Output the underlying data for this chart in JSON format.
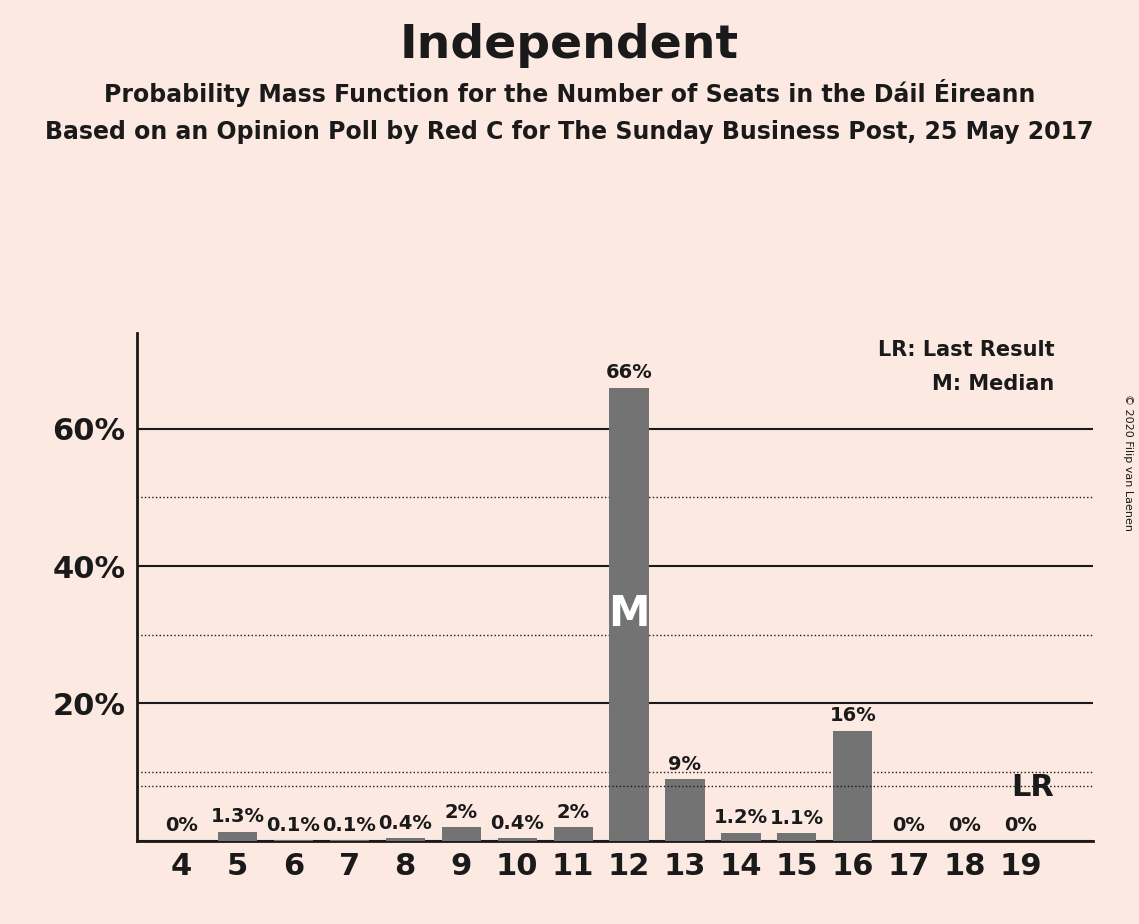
{
  "title": "Independent",
  "subtitle1": "Probability Mass Function for the Number of Seats in the Dáil Éireann",
  "subtitle2": "Based on an Opinion Poll by Red C for The Sunday Business Post, 25 May 2017",
  "copyright": "© 2020 Filip van Laenen",
  "seats": [
    4,
    5,
    6,
    7,
    8,
    9,
    10,
    11,
    12,
    13,
    14,
    15,
    16,
    17,
    18,
    19
  ],
  "probabilities": [
    0.0,
    1.3,
    0.1,
    0.1,
    0.4,
    2.0,
    0.4,
    2.0,
    66.0,
    9.0,
    1.2,
    1.1,
    16.0,
    0.0,
    0.0,
    0.0
  ],
  "bar_color": "#737373",
  "background_color": "#fce9e1",
  "text_color": "#1a1a1a",
  "median_seat": 12,
  "lr_value": 8.0,
  "ylim": [
    0,
    74
  ],
  "yticks_solid": [
    20,
    40,
    60
  ],
  "yticks_dotted": [
    10,
    30,
    50
  ],
  "lr_label": "LR: Last Result",
  "m_label": "M: Median",
  "title_fontsize": 34,
  "subtitle_fontsize": 17,
  "tick_fontsize": 22,
  "annotation_fontsize": 14,
  "legend_fontsize": 15,
  "lr_annotation_fontsize": 22
}
